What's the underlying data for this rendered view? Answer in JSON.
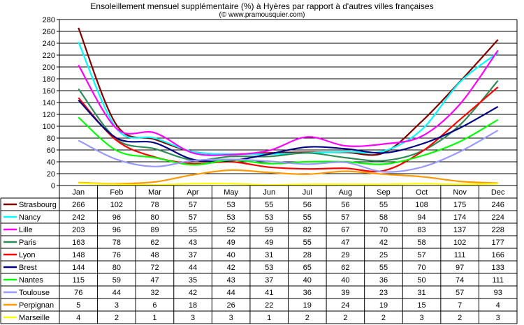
{
  "chart_data": {
    "type": "line",
    "title": "Ensoleillement mensuel supplémentaire (%) à Hyères par rapport à d'autres villes françaises",
    "subtitle": "(© www.pramousquier.com)",
    "categories": [
      "Jan",
      "Feb",
      "Mar",
      "Apr",
      "May",
      "Jun",
      "Jul",
      "Aug",
      "Sep",
      "Oct",
      "Nov",
      "Dec"
    ],
    "ylim": [
      0,
      280
    ],
    "yticks": [
      0,
      20,
      40,
      60,
      80,
      100,
      120,
      140,
      160,
      180,
      200,
      220,
      240,
      260,
      280
    ],
    "grid": true,
    "legend": "table-below",
    "series": [
      {
        "name": "Strasbourg",
        "color": "#800000",
        "values": [
          266,
          102,
          78,
          57,
          53,
          55,
          56,
          56,
          55,
          108,
          175,
          246
        ]
      },
      {
        "name": "Nancy",
        "color": "#00ffff",
        "values": [
          242,
          96,
          80,
          57,
          53,
          53,
          55,
          57,
          58,
          94,
          174,
          224
        ]
      },
      {
        "name": "Lille",
        "color": "#ff00ff",
        "values": [
          203,
          96,
          89,
          55,
          52,
          59,
          82,
          67,
          70,
          83,
          137,
          228
        ]
      },
      {
        "name": "Paris",
        "color": "#2e8b57",
        "values": [
          163,
          78,
          62,
          43,
          49,
          49,
          55,
          47,
          42,
          58,
          102,
          177
        ]
      },
      {
        "name": "Lyon",
        "color": "#ff0000",
        "values": [
          148,
          76,
          48,
          37,
          40,
          31,
          28,
          29,
          25,
          57,
          111,
          166
        ]
      },
      {
        "name": "Brest",
        "color": "#000080",
        "values": [
          144,
          80,
          72,
          44,
          42,
          53,
          65,
          62,
          55,
          70,
          97,
          133
        ]
      },
      {
        "name": "Nantes",
        "color": "#00ff00",
        "values": [
          115,
          59,
          47,
          35,
          43,
          37,
          40,
          40,
          36,
          50,
          74,
          111
        ]
      },
      {
        "name": "Toulouse",
        "color": "#9999ff",
        "values": [
          76,
          44,
          32,
          42,
          44,
          41,
          36,
          39,
          23,
          31,
          57,
          93
        ]
      },
      {
        "name": "Perpignan",
        "color": "#ff9900",
        "values": [
          5,
          3,
          6,
          18,
          26,
          22,
          19,
          24,
          19,
          15,
          7,
          4
        ]
      },
      {
        "name": "Marseille",
        "color": "#ffff00",
        "values": [
          4,
          2,
          1,
          3,
          3,
          1,
          2,
          2,
          2,
          3,
          2,
          3
        ]
      }
    ]
  }
}
